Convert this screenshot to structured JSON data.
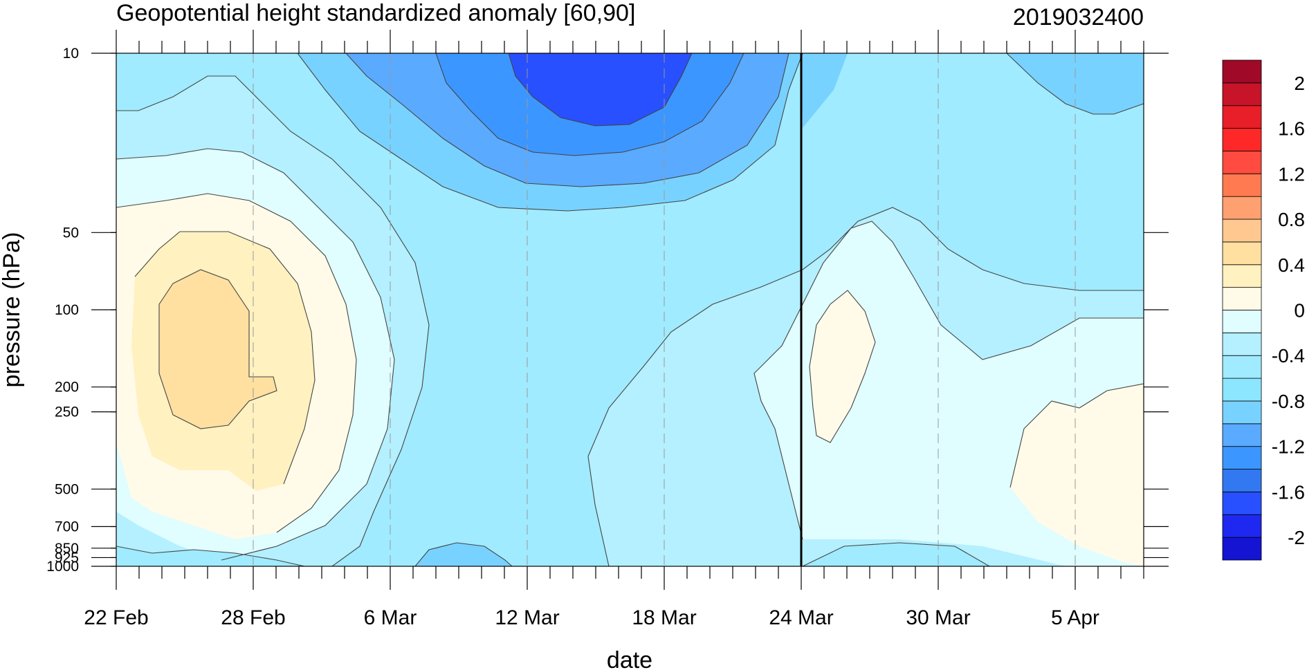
{
  "chart_data": {
    "type": "contour",
    "title": "Geopotential height standardized anomaly [60,90]",
    "timestamp": "2019032400",
    "xlabel": "date",
    "ylabel": "pressure (hPa)",
    "x_ticks": [
      {
        "day": 0,
        "label": "22 Feb"
      },
      {
        "day": 6,
        "label": "28 Feb"
      },
      {
        "day": 12,
        "label": "6 Mar"
      },
      {
        "day": 18,
        "label": "12 Mar"
      },
      {
        "day": 24,
        "label": "18 Mar"
      },
      {
        "day": 30,
        "label": "24 Mar"
      },
      {
        "day": 36,
        "label": "30 Mar"
      },
      {
        "day": 42,
        "label": "5 Apr"
      }
    ],
    "x_range_days": [
      0,
      45
    ],
    "y_scale": "log",
    "y_range": [
      1000,
      10
    ],
    "y_ticks": [
      {
        "value": 10,
        "label": "10"
      },
      {
        "value": 50,
        "label": "50"
      },
      {
        "value": 100,
        "label": "100"
      },
      {
        "value": 200,
        "label": "200"
      },
      {
        "value": 250,
        "label": "250"
      },
      {
        "value": 500,
        "label": "500"
      },
      {
        "value": 700,
        "label": "700"
      },
      {
        "value": 850,
        "label": "850"
      },
      {
        "value": 925,
        "label": "925"
      },
      {
        "value": 1000,
        "label": "1000"
      }
    ],
    "analysis_marker_day": 30,
    "colorbar": {
      "levels": [
        -2.2,
        -2,
        -1.8,
        -1.6,
        -1.4,
        -1.2,
        -1,
        -0.8,
        -0.6,
        -0.4,
        -0.2,
        0,
        0.2,
        0.4,
        0.6,
        0.8,
        1,
        1.2,
        1.4,
        1.6,
        1.8,
        2,
        2.2
      ],
      "colors": [
        "#1414d2",
        "#1e28f0",
        "#2850ff",
        "#3278f0",
        "#3c96ff",
        "#5aaaff",
        "#78d2ff",
        "#8ce6ff",
        "#a0ebff",
        "#b4f0ff",
        "#e0fdff",
        "#fffbe8",
        "#fff1c0",
        "#ffe0a0",
        "#ffc890",
        "#ffa070",
        "#ff7a50",
        "#ff4b40",
        "#ff2828",
        "#e81e28",
        "#c81428",
        "#a00a28"
      ],
      "labels": [
        "-2",
        "-1.6",
        "-1.2",
        "-0.8",
        "-0.4",
        "0",
        "0.4",
        "0.8",
        "1.2",
        "1.6",
        "2"
      ]
    },
    "field_samples": {
      "days": [
        0,
        3,
        6,
        12,
        18,
        22,
        24,
        30,
        33,
        36,
        40,
        45
      ],
      "pressures": [
        10,
        50,
        100,
        200,
        250,
        500,
        850,
        1000
      ],
      "values": [
        [
          -0.4,
          -0.3,
          -0.3,
          -0.8,
          -1.8,
          -2.0,
          -1.8,
          -0.8,
          -0.5,
          -0.5,
          -0.6,
          -0.8
        ],
        [
          0.0,
          0.4,
          0.3,
          -0.5,
          -0.8,
          -0.9,
          -0.8,
          -0.6,
          -0.4,
          -0.5,
          -0.6,
          -0.6
        ],
        [
          0.3,
          0.6,
          0.4,
          -0.5,
          -0.7,
          -0.7,
          -0.6,
          -0.5,
          -0.2,
          -0.5,
          -0.5,
          -0.5
        ],
        [
          0.4,
          0.7,
          0.4,
          -0.5,
          -0.6,
          -0.6,
          -0.5,
          -0.3,
          0.0,
          -0.2,
          -0.3,
          -0.4
        ],
        [
          0.3,
          0.6,
          0.3,
          -0.5,
          -0.6,
          -0.5,
          -0.4,
          -0.2,
          0.1,
          -0.2,
          -0.1,
          0.1
        ],
        [
          0.0,
          0.2,
          0.1,
          -0.5,
          -0.6,
          -0.4,
          -0.4,
          -0.3,
          -0.1,
          -0.2,
          0.0,
          0.1
        ],
        [
          -0.4,
          -0.4,
          -0.3,
          -0.5,
          -0.8,
          -0.5,
          -0.4,
          -0.4,
          -0.4,
          -0.4,
          -0.2,
          -0.1
        ],
        [
          -0.6,
          -0.5,
          -0.5,
          -0.6,
          -0.8,
          -0.5,
          -0.5,
          -0.4,
          -0.4,
          -0.4,
          -0.3,
          -0.2
        ]
      ]
    }
  }
}
